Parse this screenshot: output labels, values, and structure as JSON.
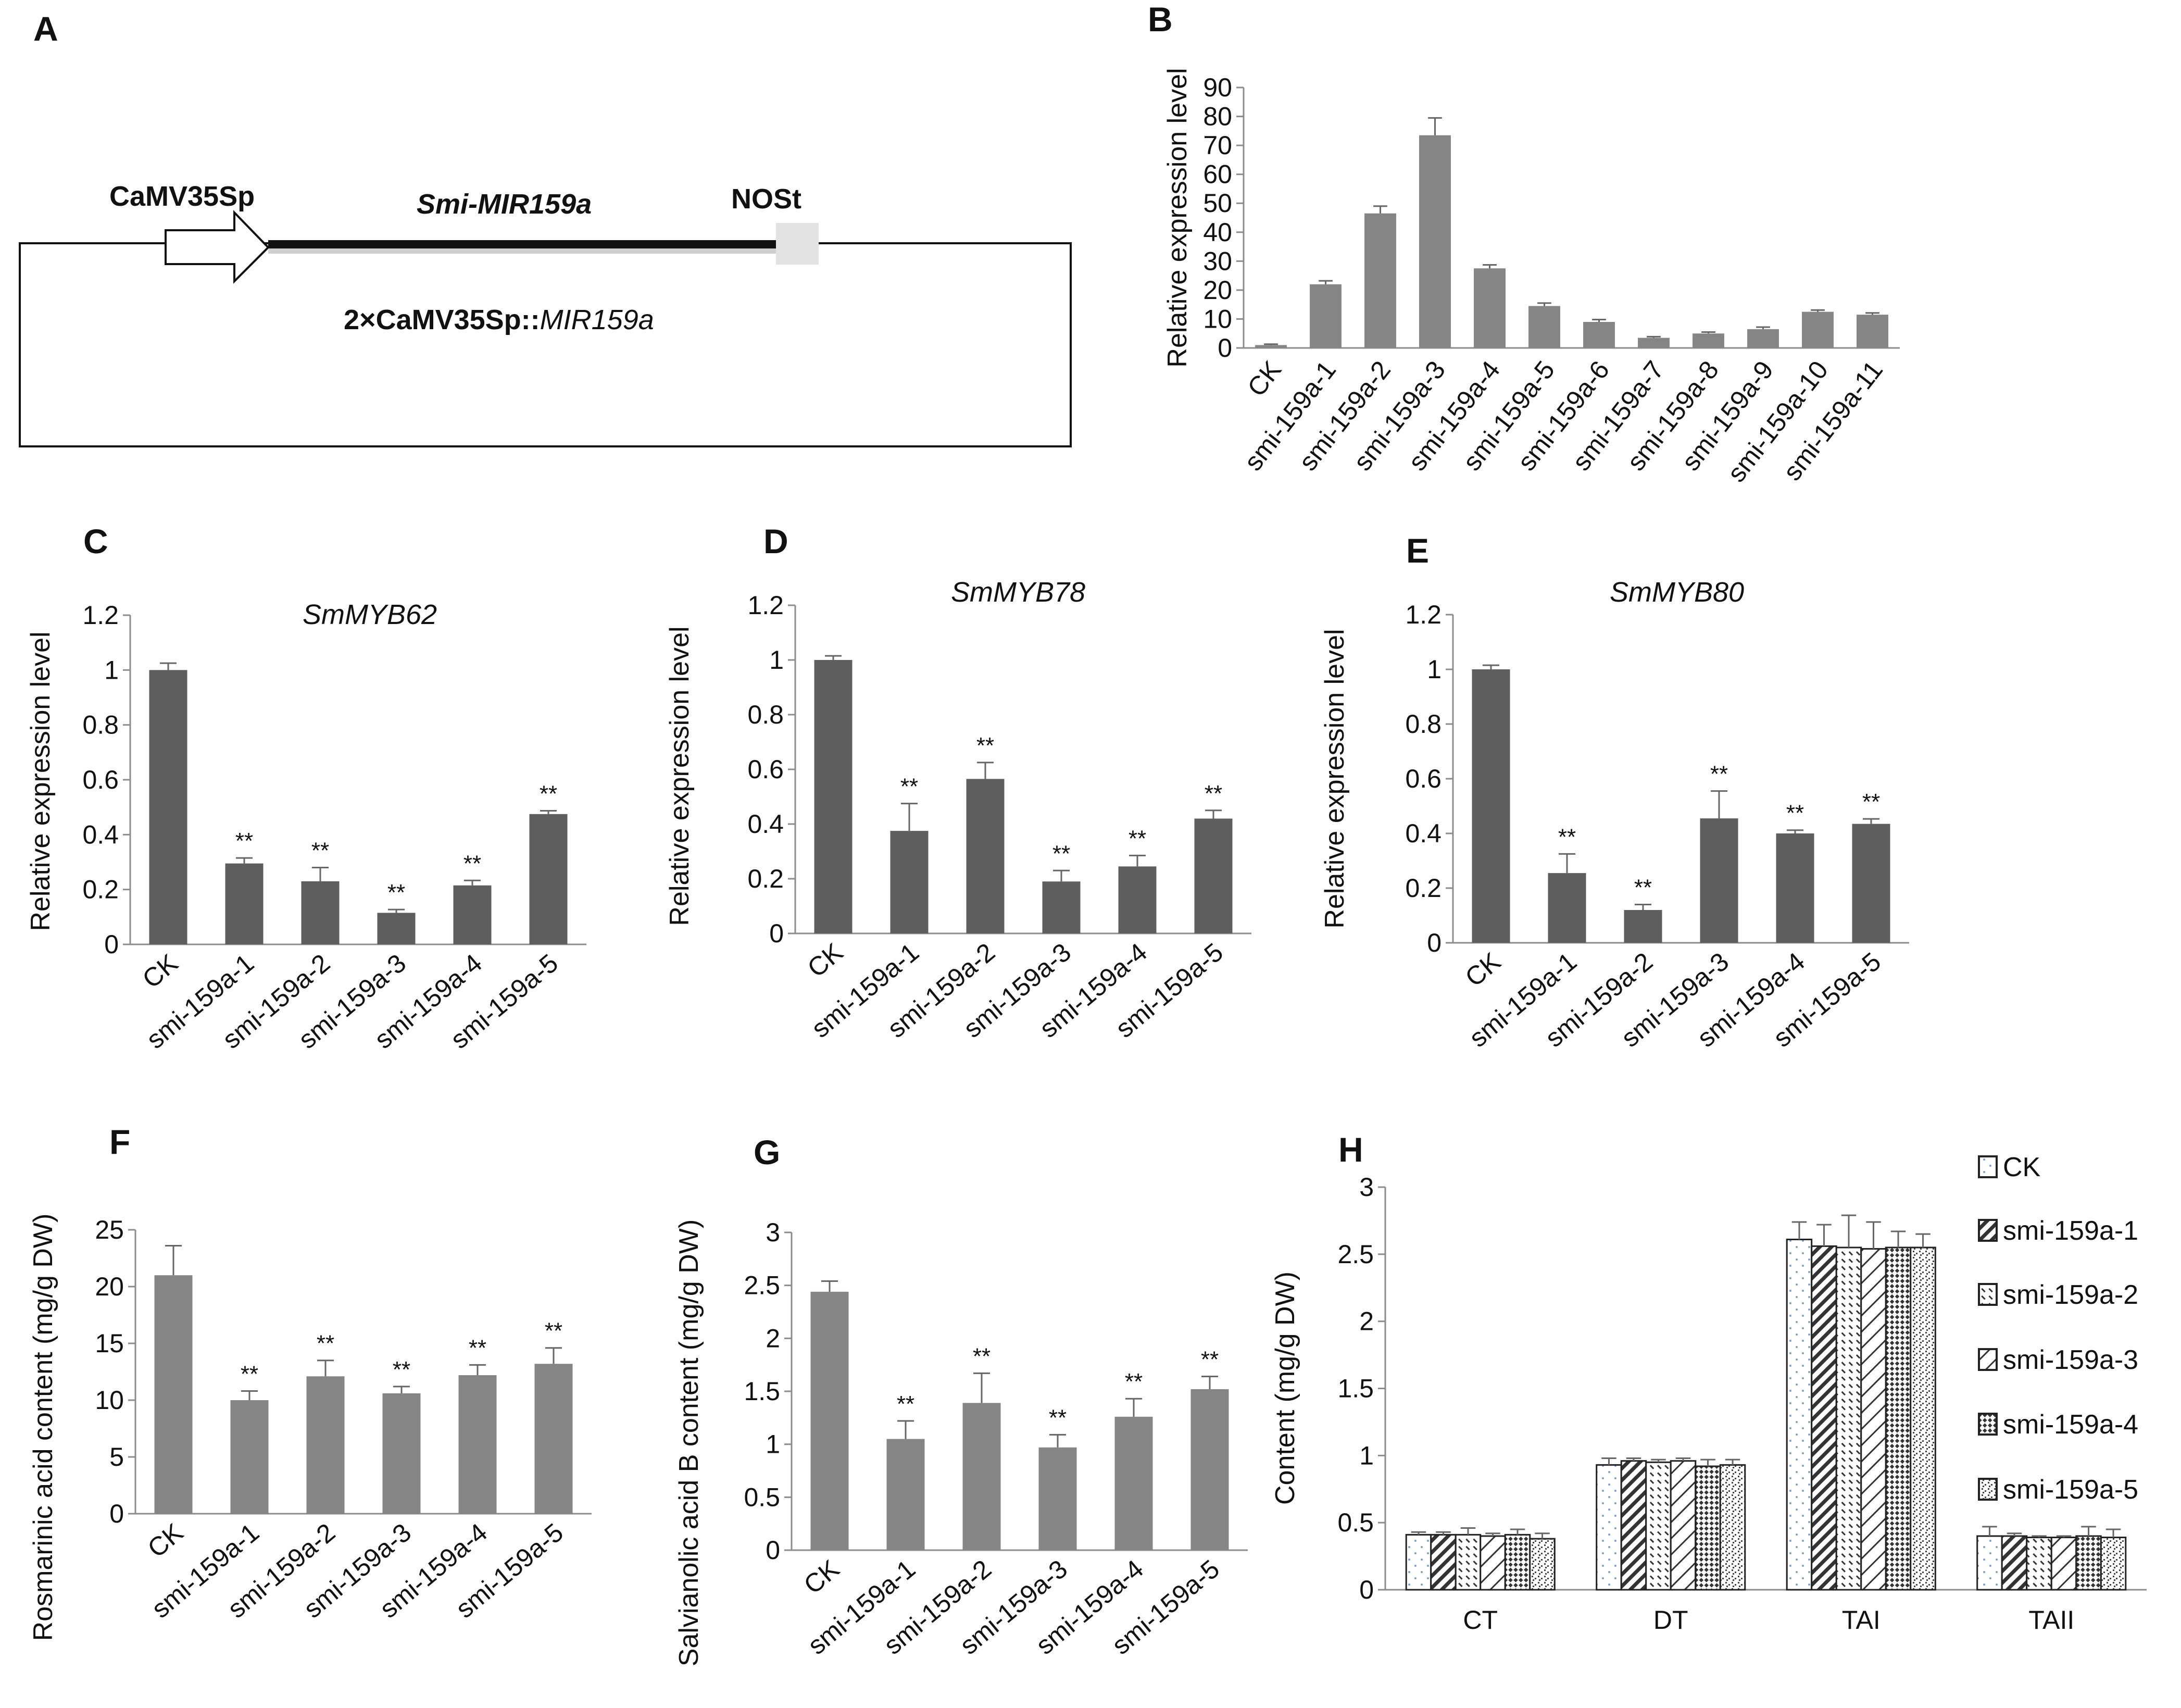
{
  "colors": {
    "bar_gray": "#858585",
    "bar_dark": "#5e5e5e",
    "error_bar": "#666666",
    "axis": "#8c8c8c",
    "nost_box": "#e3e3e3"
  },
  "construct": {
    "label": "A",
    "promoter": "CaMV35Sp",
    "gene": "Smi-MIR159a",
    "terminator": "NOSt",
    "vector_prefix": "2×CaMV35Sp::",
    "vector_gene": "MIR159a"
  },
  "chart_data": [
    {
      "panel": "B",
      "type": "bar",
      "title": "",
      "xlabel": "",
      "ylabel": "Relative expression level",
      "categories": [
        "CK",
        "smi-159a-1",
        "smi-159a-2",
        "smi-159a-3",
        "smi-159a-4",
        "smi-159a-5",
        "smi-159a-6",
        "smi-159a-7",
        "smi-159a-8",
        "smi-159a-9",
        "smi-159a-10",
        "smi-159a-11"
      ],
      "values": [
        1,
        22,
        46.5,
        73.5,
        27.5,
        14.5,
        9,
        3.5,
        5,
        6.5,
        12.5,
        11.5
      ],
      "errors": [
        0.3,
        1.2,
        2.5,
        6,
        1.2,
        1,
        0.8,
        0.4,
        0.5,
        0.7,
        0.6,
        0.6
      ],
      "significance": [],
      "ylim": [
        0,
        90
      ],
      "yticks": [
        "0",
        "10",
        "20",
        "30",
        "40",
        "50",
        "60",
        "70",
        "80",
        "90"
      ]
    },
    {
      "panel": "C",
      "type": "bar",
      "title": "SmMYB62",
      "xlabel": "",
      "ylabel": "Relative expression level",
      "categories": [
        "CK",
        "smi-159a-1",
        "smi-159a-2",
        "smi-159a-3",
        "smi-159a-4",
        "smi-159a-5"
      ],
      "values": [
        1.0,
        0.295,
        0.23,
        0.115,
        0.215,
        0.475
      ],
      "errors": [
        0.025,
        0.02,
        0.05,
        0.012,
        0.018,
        0.012
      ],
      "significance": [
        "",
        "**",
        "**",
        "**",
        "**",
        "**"
      ],
      "ylim": [
        0,
        1.2
      ],
      "yticks": [
        "0",
        "0.2",
        "0.4",
        "0.6",
        "0.8",
        "1",
        "1.2"
      ]
    },
    {
      "panel": "D",
      "type": "bar",
      "title": "SmMYB78",
      "xlabel": "",
      "ylabel": "Relative expression level",
      "categories": [
        "CK",
        "smi-159a-1",
        "smi-159a-2",
        "smi-159a-3",
        "smi-159a-4",
        "smi-159a-5"
      ],
      "values": [
        1.0,
        0.375,
        0.565,
        0.19,
        0.245,
        0.42
      ],
      "errors": [
        0.015,
        0.1,
        0.06,
        0.04,
        0.04,
        0.03
      ],
      "significance": [
        "",
        "**",
        "**",
        "**",
        "**",
        "**"
      ],
      "ylim": [
        0,
        1.2
      ],
      "yticks": [
        "0",
        "0.2",
        "0.4",
        "0.6",
        "0.8",
        "1",
        "1.2"
      ]
    },
    {
      "panel": "E",
      "type": "bar",
      "title": "SmMYB80",
      "xlabel": "",
      "ylabel": "Relative expression level",
      "categories": [
        "CK",
        "smi-159a-1",
        "smi-159a-2",
        "smi-159a-3",
        "smi-159a-4",
        "smi-159a-5"
      ],
      "values": [
        1.0,
        0.255,
        0.12,
        0.455,
        0.4,
        0.435
      ],
      "errors": [
        0.015,
        0.07,
        0.02,
        0.1,
        0.012,
        0.018
      ],
      "significance": [
        "",
        "**",
        "**",
        "**",
        "**",
        "**"
      ],
      "ylim": [
        0,
        1.2
      ],
      "yticks": [
        "0",
        "0.2",
        "0.4",
        "0.6",
        "0.8",
        "1",
        "1.2"
      ]
    },
    {
      "panel": "F",
      "type": "bar",
      "title": "",
      "xlabel": "",
      "ylabel": "Rosmarinic acid content (mg/g DW)",
      "categories": [
        "CK",
        "smi-159a-1",
        "smi-159a-2",
        "smi-159a-3",
        "smi-159a-4",
        "smi-159a-5"
      ],
      "values": [
        21.0,
        10.0,
        12.1,
        10.6,
        12.2,
        13.2
      ],
      "errors": [
        2.6,
        0.8,
        1.4,
        0.6,
        0.9,
        1.4
      ],
      "significance": [
        "",
        "**",
        "**",
        "**",
        "**",
        "**"
      ],
      "ylim": [
        0,
        25
      ],
      "yticks": [
        "0",
        "5",
        "10",
        "15",
        "20",
        "25"
      ]
    },
    {
      "panel": "G",
      "type": "bar",
      "title": "",
      "xlabel": "",
      "ylabel": "Salvianolic acid B content (mg/g DW)",
      "categories": [
        "CK",
        "smi-159a-1",
        "smi-159a-2",
        "smi-159a-3",
        "smi-159a-4",
        "smi-159a-5"
      ],
      "values": [
        2.44,
        1.05,
        1.39,
        0.97,
        1.26,
        1.52
      ],
      "errors": [
        0.1,
        0.17,
        0.28,
        0.12,
        0.17,
        0.12
      ],
      "significance": [
        "",
        "**",
        "**",
        "**",
        "**",
        "**"
      ],
      "ylim": [
        0,
        3
      ],
      "yticks": [
        "0",
        "0.5",
        "1",
        "1.5",
        "2",
        "2.5",
        "3"
      ]
    },
    {
      "panel": "H",
      "type": "bar",
      "title": "",
      "xlabel": "",
      "ylabel": "Content (mg/g DW)",
      "categories": [
        "CT",
        "DT",
        "TAI",
        "TAII"
      ],
      "ylim": [
        0,
        3
      ],
      "yticks": [
        "0",
        "0.5",
        "1",
        "1.5",
        "2",
        "2.5",
        "3"
      ],
      "legend_position": "right",
      "series": [
        {
          "name": "CK",
          "values": [
            0.41,
            0.93,
            2.61,
            0.4
          ],
          "errors": [
            0.02,
            0.05,
            0.13,
            0.07
          ]
        },
        {
          "name": "smi-159a-1",
          "values": [
            0.41,
            0.96,
            2.56,
            0.4
          ],
          "errors": [
            0.02,
            0.02,
            0.16,
            0.02
          ]
        },
        {
          "name": "smi-159a-2",
          "values": [
            0.41,
            0.95,
            2.55,
            0.39
          ],
          "errors": [
            0.05,
            0.02,
            0.24,
            0.01
          ]
        },
        {
          "name": "smi-159a-3",
          "values": [
            0.4,
            0.96,
            2.54,
            0.39
          ],
          "errors": [
            0.02,
            0.02,
            0.2,
            0.01
          ]
        },
        {
          "name": "smi-159a-4",
          "values": [
            0.41,
            0.92,
            2.55,
            0.4
          ],
          "errors": [
            0.04,
            0.05,
            0.12,
            0.07
          ]
        },
        {
          "name": "smi-159a-5",
          "values": [
            0.38,
            0.93,
            2.55,
            0.39
          ],
          "errors": [
            0.04,
            0.04,
            0.1,
            0.06
          ]
        }
      ]
    }
  ]
}
